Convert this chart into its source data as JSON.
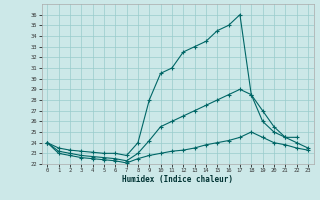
{
  "xlabel": "Humidex (Indice chaleur)",
  "background_color": "#cce8e8",
  "grid_color": "#99cccc",
  "line_color": "#006666",
  "xlim": [
    -0.5,
    23.5
  ],
  "ylim": [
    22,
    37
  ],
  "x_ticks": [
    0,
    1,
    2,
    3,
    4,
    5,
    6,
    7,
    8,
    9,
    10,
    11,
    12,
    13,
    14,
    15,
    16,
    17,
    18,
    19,
    20,
    21,
    22,
    23
  ],
  "y_ticks": [
    22,
    23,
    24,
    25,
    26,
    27,
    28,
    29,
    30,
    31,
    32,
    33,
    34,
    35,
    36
  ],
  "max_x": [
    0,
    1,
    2,
    3,
    4,
    5,
    6,
    7,
    8,
    9,
    10,
    11,
    12,
    13,
    14,
    15,
    16,
    17,
    18,
    19,
    20,
    21,
    22
  ],
  "max_y": [
    24.0,
    23.5,
    23.3,
    23.2,
    23.1,
    23.0,
    23.0,
    22.8,
    24.0,
    28.0,
    30.5,
    31.0,
    32.5,
    33.0,
    33.5,
    34.5,
    35.0,
    36.0,
    28.5,
    26.0,
    25.0,
    24.5,
    24.5
  ],
  "avg_x": [
    0,
    1,
    2,
    3,
    4,
    5,
    6,
    7,
    8,
    9,
    10,
    11,
    12,
    13,
    14,
    15,
    16,
    17,
    18,
    19,
    20,
    21,
    22,
    23
  ],
  "avg_y": [
    24.0,
    23.2,
    23.0,
    22.8,
    22.7,
    22.6,
    22.5,
    22.3,
    23.0,
    24.2,
    25.5,
    26.0,
    26.5,
    27.0,
    27.5,
    28.0,
    28.5,
    29.0,
    28.5,
    27.0,
    25.5,
    24.5,
    24.0,
    23.5
  ],
  "min_x": [
    0,
    1,
    2,
    3,
    4,
    5,
    6,
    7,
    8,
    9,
    10,
    11,
    12,
    13,
    14,
    15,
    16,
    17,
    18,
    19,
    20,
    21,
    22,
    23
  ],
  "min_y": [
    24.0,
    23.0,
    22.8,
    22.6,
    22.5,
    22.4,
    22.3,
    22.1,
    22.5,
    22.8,
    23.0,
    23.2,
    23.3,
    23.5,
    23.8,
    24.0,
    24.2,
    24.5,
    25.0,
    24.5,
    24.0,
    23.8,
    23.5,
    23.3
  ]
}
